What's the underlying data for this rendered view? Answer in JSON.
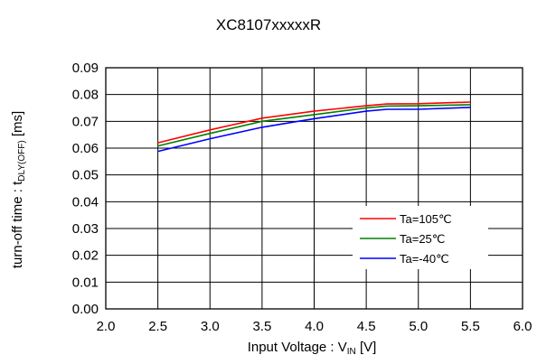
{
  "chart_data": {
    "type": "line",
    "title": "XC8107xxxxxR",
    "xlabel": {
      "main": "Input Voltage : V",
      "sub": "IN",
      "unit": " [V]"
    },
    "ylabel": {
      "main": "turn-off time : t",
      "sub": "DLY(OFF)",
      "unit": " [ms]"
    },
    "xlim": [
      2.0,
      6.0
    ],
    "ylim": [
      0.0,
      0.09
    ],
    "x_ticks": [
      "2.0",
      "2.5",
      "3.0",
      "3.5",
      "4.0",
      "4.5",
      "5.0",
      "5.5",
      "6.0"
    ],
    "y_ticks": [
      "0.00",
      "0.01",
      "0.02",
      "0.03",
      "0.04",
      "0.05",
      "0.06",
      "0.07",
      "0.08",
      "0.09"
    ],
    "grid": true,
    "legend_position": "lower-right",
    "series": [
      {
        "name": "Ta=105℃",
        "color": "#ff0000",
        "x": [
          2.5,
          3.0,
          3.5,
          4.0,
          4.5,
          4.7,
          5.0,
          5.5
        ],
        "y": [
          0.062,
          0.0668,
          0.0712,
          0.0738,
          0.0758,
          0.0765,
          0.0766,
          0.0772
        ]
      },
      {
        "name": "Ta=25℃",
        "color": "#008000",
        "x": [
          2.5,
          3.0,
          3.5,
          4.0,
          4.5,
          4.7,
          5.0,
          5.5
        ],
        "y": [
          0.0608,
          0.0655,
          0.07,
          0.0725,
          0.075,
          0.0757,
          0.0758,
          0.0762
        ]
      },
      {
        "name": "Ta=-40℃",
        "color": "#0000ff",
        "x": [
          2.5,
          3.0,
          3.5,
          3.8,
          4.0,
          4.5,
          4.7,
          5.0,
          5.5
        ],
        "y": [
          0.0588,
          0.0635,
          0.0678,
          0.0697,
          0.071,
          0.0738,
          0.0745,
          0.0745,
          0.0752
        ]
      }
    ]
  }
}
